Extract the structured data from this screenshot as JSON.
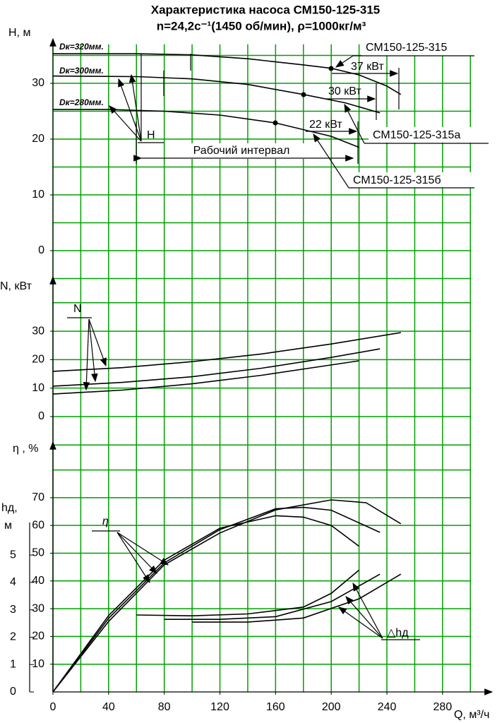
{
  "chart_data": [
    {
      "type": "line",
      "title": "Характеристика насоса СМ150-125-315",
      "subtitle": "n=24,2с⁻¹(1450 об/мин), ρ=1000кг/м³",
      "ylabel": "H, м",
      "xlim": [
        0,
        300
      ],
      "ylim": [
        -5,
        37
      ],
      "yticks": [
        0,
        10,
        20,
        30
      ],
      "xgrid": [
        0,
        20,
        40,
        60,
        80,
        100,
        120,
        140,
        160,
        180,
        200,
        220,
        240,
        260,
        280,
        300
      ],
      "ygrid": [
        -5,
        0,
        5,
        10,
        15,
        20,
        25,
        30,
        35
      ],
      "grid_color": "#00a000",
      "series": [
        {
          "name": "СМ150-125-315",
          "color": "#000000",
          "x": [
            0,
            60,
            100,
            140,
            180,
            200,
            220,
            240,
            250
          ],
          "values": [
            35.3,
            35.3,
            35.1,
            34.4,
            33.3,
            32.7,
            31.5,
            29.5,
            28
          ]
        },
        {
          "name": "СМ150-125-315а",
          "color": "#000000",
          "x": [
            0,
            60,
            100,
            140,
            180,
            210,
            235
          ],
          "values": [
            31.3,
            31.2,
            30.8,
            29.8,
            28,
            26.5,
            24.7
          ]
        },
        {
          "name": "СМ150-125-315б",
          "color": "#000000",
          "x": [
            0,
            40,
            80,
            120,
            160,
            200,
            220
          ],
          "values": [
            25.3,
            25.3,
            25,
            24.3,
            22.9,
            20.5,
            18.5
          ]
        }
      ],
      "annotations": [
        "Dк=320мм.",
        "Dк=300мм.",
        "Dк=280мм.",
        "H",
        "Рабочий интервал",
        "37 кВт",
        "30 кВт",
        "22 кВт"
      ]
    },
    {
      "type": "line",
      "ylabel": "N, кВт",
      "xlim": [
        0,
        300
      ],
      "ylim": [
        -10,
        48.5
      ],
      "yticks": [
        0,
        10,
        20,
        30
      ],
      "xgrid": [
        0,
        20,
        40,
        60,
        80,
        100,
        120,
        140,
        160,
        180,
        200,
        220,
        240,
        260,
        280,
        300
      ],
      "ygrid": [
        -10,
        0,
        10,
        20,
        30,
        40
      ],
      "grid_color": "#00a000",
      "series": [
        {
          "color": "#000000",
          "x": [
            0,
            50,
            100,
            150,
            200,
            250
          ],
          "values": [
            15.9,
            17.2,
            19.3,
            22,
            25.5,
            29.5
          ]
        },
        {
          "color": "#000000",
          "x": [
            0,
            50,
            100,
            150,
            200,
            235
          ],
          "values": [
            10.7,
            12,
            14,
            17,
            20.8,
            23.8
          ]
        },
        {
          "color": "#000000",
          "x": [
            0,
            50,
            100,
            150,
            220
          ],
          "values": [
            7.9,
            9.3,
            11.5,
            14.5,
            19.6
          ]
        }
      ],
      "annotations": [
        "N"
      ]
    },
    {
      "type": "line",
      "ylabel": "η , %",
      "y2label": [
        "hд,",
        "м"
      ],
      "xlabel": "Q, м³/ч",
      "xlim": [
        0,
        300
      ],
      "xticks": [
        0,
        40,
        80,
        120,
        160,
        200,
        240,
        280
      ],
      "ylim": [
        0,
        89
      ],
      "yticks": [
        10,
        20,
        30,
        40,
        50,
        60,
        70
      ],
      "y2lim": [
        0,
        9.02
      ],
      "y2ticks": [
        0,
        1,
        2,
        3,
        4,
        5
      ],
      "xgrid": [
        0,
        20,
        40,
        60,
        80,
        100,
        120,
        140,
        160,
        180,
        200,
        220,
        240,
        260,
        280,
        300
      ],
      "ygrid": [
        10,
        20,
        30,
        40,
        50,
        60,
        70,
        80
      ],
      "grid_color": "#00a000",
      "series": [
        {
          "color": "#000000",
          "x": [
            0,
            40,
            80,
            120,
            160,
            200,
            225,
            250
          ],
          "values": [
            0,
            25.4,
            45.8,
            57.3,
            65.6,
            69.2,
            68.2,
            60.6
          ]
        },
        {
          "color": "#000000",
          "x": [
            0,
            40,
            80,
            120,
            160,
            180,
            200,
            235
          ],
          "values": [
            0,
            26.5,
            46.5,
            58.5,
            66,
            66.5,
            65.5,
            57.5
          ]
        },
        {
          "color": "#000000",
          "x": [
            0,
            40,
            80,
            120,
            160,
            180,
            200,
            220
          ],
          "values": [
            0,
            27.5,
            47.5,
            59,
            63.5,
            63,
            60,
            52.5
          ]
        },
        {
          "color": "#000000",
          "axis": "y2",
          "x": [
            60,
            100,
            140,
            180,
            200,
            220
          ],
          "values": [
            2.81,
            2.78,
            2.85,
            3.1,
            3.6,
            4.45
          ]
        },
        {
          "color": "#000000",
          "axis": "y2",
          "x": [
            80,
            120,
            160,
            200,
            235
          ],
          "values": [
            2.65,
            2.65,
            2.75,
            3.3,
            4.3
          ]
        },
        {
          "color": "#000000",
          "axis": "y2",
          "x": [
            100,
            140,
            180,
            220,
            250
          ],
          "values": [
            2.55,
            2.55,
            2.7,
            3.4,
            4.3
          ]
        }
      ],
      "annotations": [
        "η",
        "△hд"
      ]
    }
  ]
}
